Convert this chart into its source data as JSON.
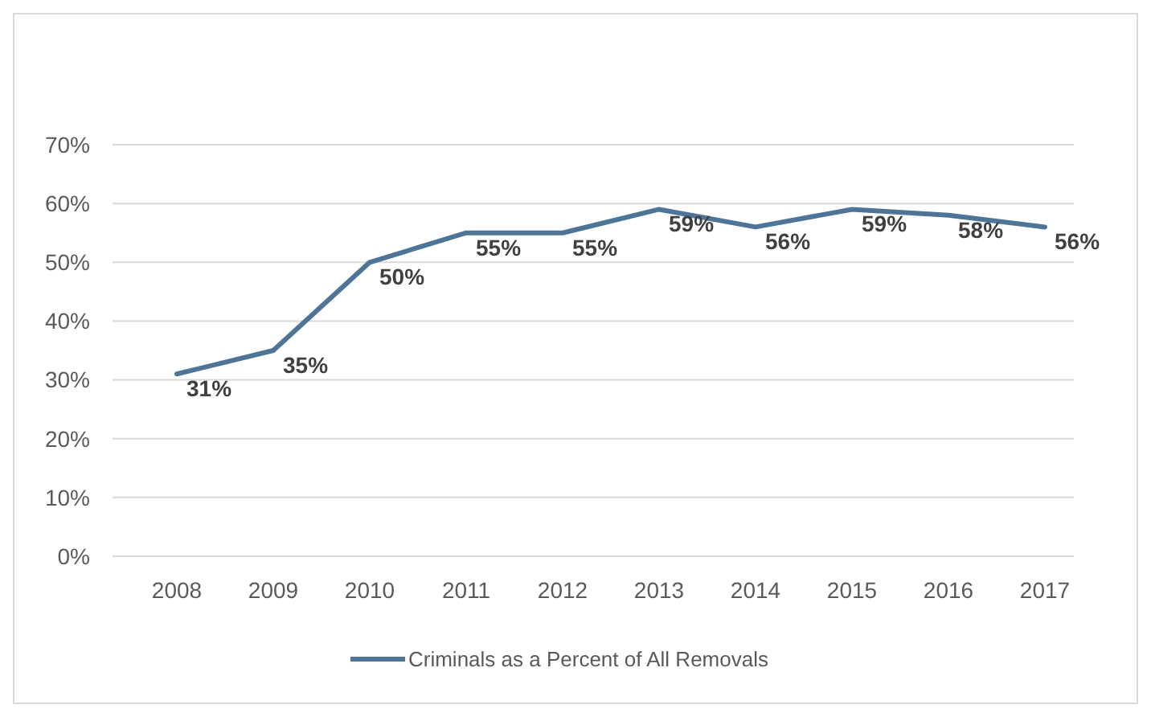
{
  "chart_data": {
    "type": "line",
    "categories": [
      "2008",
      "2009",
      "2010",
      "2011",
      "2012",
      "2013",
      "2014",
      "2015",
      "2016",
      "2017"
    ],
    "series": [
      {
        "name": "Criminals as a Percent of All Removals",
        "color": "#4e7598",
        "values": [
          31,
          35,
          50,
          55,
          55,
          59,
          56,
          59,
          58,
          56
        ],
        "value_labels": [
          "31%",
          "35%",
          "50%",
          "55%",
          "55%",
          "59%",
          "56%",
          "59%",
          "58%",
          "56%"
        ]
      }
    ],
    "ylim": [
      0,
      70
    ],
    "yticks": [
      {
        "value": 0,
        "label": "0%"
      },
      {
        "value": 10,
        "label": "10%"
      },
      {
        "value": 20,
        "label": "20%"
      },
      {
        "value": 30,
        "label": "30%"
      },
      {
        "value": 40,
        "label": "40%"
      },
      {
        "value": 50,
        "label": "50%"
      },
      {
        "value": 60,
        "label": "60%"
      },
      {
        "value": 70,
        "label": "70%"
      }
    ],
    "grid": "y",
    "legend": "bottom",
    "marker": "none",
    "line_style": "solid"
  }
}
